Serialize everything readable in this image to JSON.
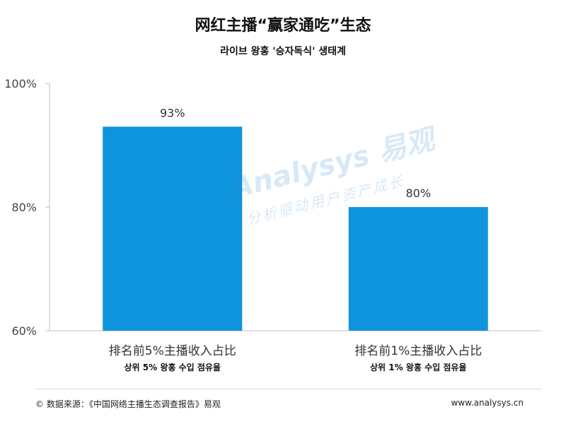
{
  "chart_data": {
    "type": "bar",
    "title": "网红主播“赢家通吃”生态",
    "subtitle": "라이브 왕홍 '승자독식' 생태계",
    "categories": [
      "排名前5%主播收入占比",
      "排名前1%主播收入占比"
    ],
    "category_subtitles": [
      "상위 5% 왕홍 수입 점유율",
      "상위 1% 왕홍 수입 점유율"
    ],
    "values": [
      93,
      80
    ],
    "data_labels": [
      "93%",
      "80%"
    ],
    "ylim": [
      60,
      100
    ],
    "yticks": [
      60,
      80,
      100
    ],
    "ytick_labels": [
      "60%",
      "80%",
      "100%"
    ],
    "xlabel": "",
    "ylabel": "",
    "bar_color": "#0e94dc",
    "grid": false
  },
  "watermark": {
    "brand": "Analysys 易观",
    "slogan": "分析驱动用户资产成长"
  },
  "footer": {
    "source": "© 数据来源：《中国网络主播生态调查报告》易观",
    "site": "www.analysys.cn"
  }
}
